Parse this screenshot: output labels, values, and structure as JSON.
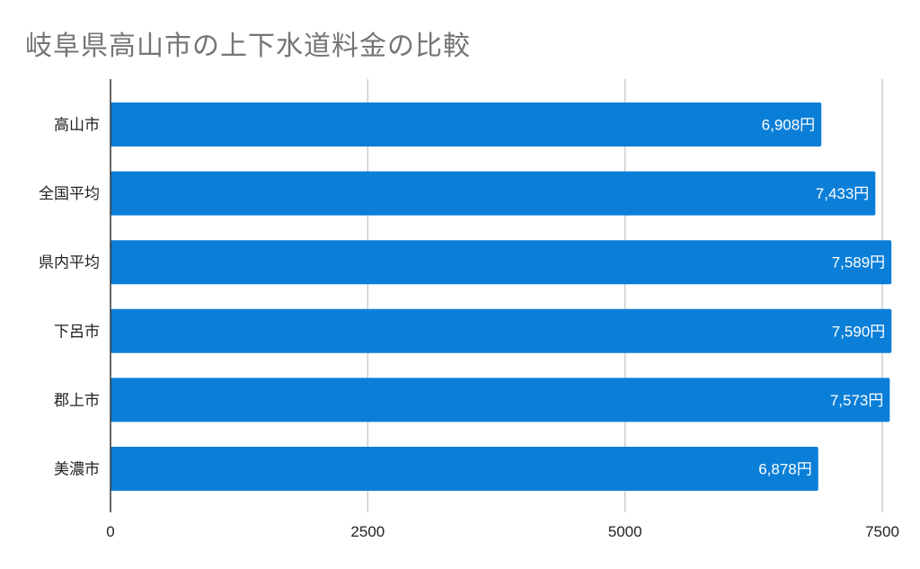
{
  "chart_data": {
    "type": "bar",
    "orientation": "horizontal",
    "title": "岐阜県高山市の上下水道料金の比較",
    "categories": [
      "高山市",
      "全国平均",
      "県内平均",
      "下呂市",
      "郡上市",
      "美濃市"
    ],
    "values": [
      6908,
      7433,
      7589,
      7590,
      7573,
      6878
    ],
    "data_labels": [
      "6,908円",
      "7,433円",
      "7,589円",
      "7,590円",
      "7,573円",
      "6,878円"
    ],
    "xlim": [
      0,
      7500
    ],
    "x_ticks": [
      0,
      2500,
      5000,
      7500
    ],
    "x_tick_labels": [
      "0",
      "2500",
      "5000",
      "7500"
    ],
    "xlabel": "",
    "ylabel": "",
    "grid": true,
    "bar_color": "#0b7fd8",
    "grid_color": "#cccccc",
    "axis_color": "#333333"
  }
}
